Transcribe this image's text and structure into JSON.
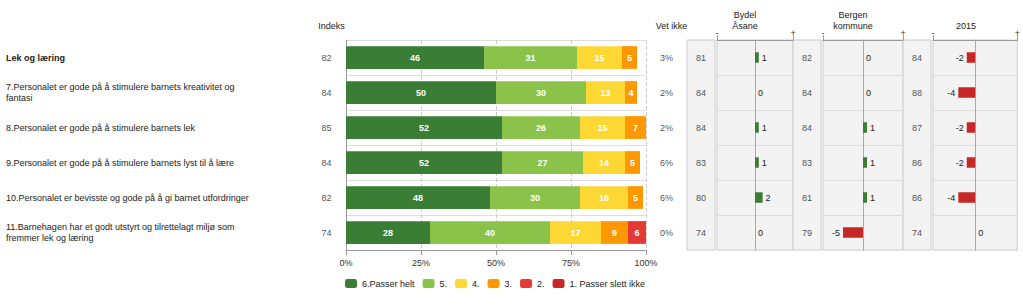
{
  "chart_data": [
    {
      "type": "bar",
      "orientation": "horizontal",
      "stacked": true,
      "categories": [
        "Lek og læring",
        "7.Personalet er gode på å stimulere barnets kreativitet og\nfantasi",
        "8.Personalet er gode på å stimulere barnets lek",
        "9.Personalet er gode på å stimulere barnets lyst til å lære",
        "10.Personalet er bevisste og gode på å gi barnet utfordringer",
        "11.Barnehagen har et godt utstyrt og tilrettelagt miljø som\nfremmer lek og læring"
      ],
      "series": [
        {
          "name": "6.Passer helt",
          "color": "#3a7d34",
          "values": [
            46,
            50,
            52,
            52,
            48,
            28
          ]
        },
        {
          "name": "5.",
          "color": "#8bc34a",
          "values": [
            31,
            30,
            26,
            27,
            30,
            40
          ]
        },
        {
          "name": "4.",
          "color": "#fdd835",
          "values": [
            15,
            13,
            15,
            14,
            16,
            17
          ]
        },
        {
          "name": "3.",
          "color": "#ff9800",
          "values": [
            5,
            4,
            7,
            5,
            5,
            9
          ]
        },
        {
          "name": "2.",
          "color": "#e53935",
          "values": [
            0,
            0,
            0,
            0,
            0,
            6
          ]
        },
        {
          "name": "1. Passer slett ikke",
          "color": "#c62828",
          "values": [
            null,
            null,
            null,
            null,
            null,
            null
          ]
        }
      ],
      "xlim": [
        0,
        100
      ],
      "xticks": [
        {
          "value": 0,
          "label": "0%"
        },
        {
          "value": 25,
          "label": "25%"
        },
        {
          "value": 50,
          "label": "50%"
        },
        {
          "value": 75,
          "label": "75%"
        },
        {
          "value": 100,
          "label": "100%"
        }
      ],
      "grid": true,
      "data_labels": true,
      "legend": "bottom"
    },
    {
      "type": "table",
      "title": "Indeks",
      "values": [
        82,
        84,
        85,
        84,
        82,
        74
      ]
    },
    {
      "type": "table",
      "title": "Vet ikke",
      "values": [
        3,
        2,
        2,
        6,
        6,
        0
      ],
      "value_labels": [
        "3%",
        "2%",
        "2%",
        "6%",
        "6%",
        "0%"
      ]
    },
    {
      "type": "bar",
      "orientation": "horizontal",
      "title": "Bydel\nÅsane",
      "scores": [
        81,
        84,
        84,
        83,
        80,
        74
      ],
      "values": [
        1,
        0,
        1,
        1,
        2,
        0
      ],
      "colors": [
        "#3a7d34",
        "#3a7d34",
        "#3a7d34",
        "#3a7d34",
        "#3a7d34",
        "#3a7d34"
      ],
      "xlim": [
        -10,
        10
      ],
      "xticks": [
        {
          "value": -10,
          "label": "-"
        },
        {
          "value": 10,
          "label": "+"
        }
      ],
      "data_labels": true,
      "tick_labels": "x"
    },
    {
      "type": "bar",
      "orientation": "horizontal",
      "title": "Bergen\nkommune",
      "scores": [
        82,
        84,
        84,
        83,
        81,
        79
      ],
      "values": [
        0,
        0,
        1,
        1,
        1,
        -5
      ],
      "colors": [
        "#3a7d34",
        "#3a7d34",
        "#3a7d34",
        "#3a7d34",
        "#3a7d34",
        "#c62828"
      ],
      "xlim": [
        -10,
        10
      ],
      "xticks": [
        {
          "value": -10,
          "label": "-"
        },
        {
          "value": 10,
          "label": "+"
        }
      ],
      "data_labels": true,
      "tick_labels": "x"
    },
    {
      "type": "bar",
      "orientation": "horizontal",
      "title": "2015",
      "scores": [
        84,
        88,
        87,
        86,
        86,
        74
      ],
      "values": [
        -2,
        -4,
        -2,
        -2,
        -4,
        0
      ],
      "colors": [
        "#c62828",
        "#c62828",
        "#c62828",
        "#c62828",
        "#c62828",
        "#3a7d34"
      ],
      "xlim": [
        -10,
        10
      ],
      "xticks": [
        {
          "value": -10,
          "label": "-"
        },
        {
          "value": 10,
          "label": "+"
        }
      ],
      "data_labels": true,
      "tick_labels": "x"
    }
  ]
}
